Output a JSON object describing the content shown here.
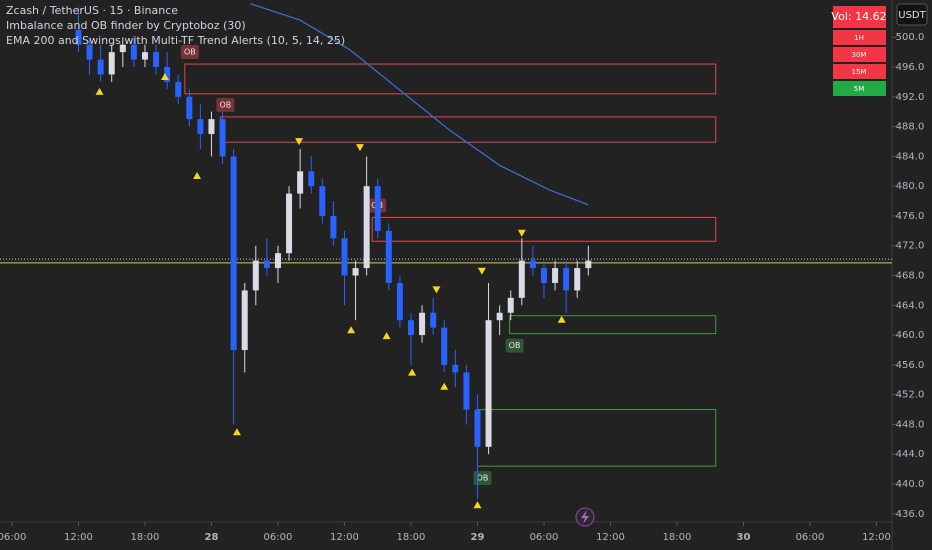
{
  "chart_data": {
    "type": "candlestick",
    "title": "Zcash / TetherUS · 15 · Binance",
    "indicators": [
      "Imbalance and OB finder by Cryptoboz (30)",
      "EMA 200 and Swings with Multi-TF Trend Alerts (10, 5, 14, 25)"
    ],
    "x": [
      12,
      13,
      14,
      15,
      16,
      17,
      18,
      19,
      20,
      21,
      22,
      23,
      24,
      25,
      26,
      27,
      28,
      29,
      30,
      31,
      32,
      33,
      34,
      35,
      36,
      37,
      38,
      39,
      40,
      41,
      42,
      43,
      44,
      45,
      46,
      47,
      48,
      49,
      50,
      51,
      52,
      53,
      54,
      55,
      56,
      57,
      58
    ],
    "open": [
      501,
      499,
      497,
      495,
      498,
      499,
      497,
      498,
      496,
      494,
      492,
      489,
      487,
      489,
      484,
      458,
      466,
      470,
      469,
      471,
      479,
      482,
      480,
      476,
      473,
      468,
      469,
      480,
      474,
      467,
      462,
      460,
      463,
      461,
      456,
      455,
      450,
      445,
      462,
      463,
      465,
      470,
      469,
      467,
      469,
      466,
      469
    ],
    "high": [
      504,
      500,
      499,
      499,
      500,
      500,
      499,
      499,
      498,
      495,
      493,
      491,
      490,
      490,
      485,
      467,
      472,
      473,
      472,
      480,
      485,
      484,
      481,
      478,
      474,
      470,
      484,
      481,
      475,
      468,
      463,
      464,
      465,
      462,
      458,
      456,
      452,
      467,
      464,
      466,
      473,
      472,
      470,
      470,
      470,
      470,
      472
    ],
    "low": [
      498,
      495,
      494,
      494,
      496,
      496,
      496,
      495,
      493,
      491,
      488,
      485,
      484,
      483,
      448,
      455,
      464,
      468,
      467,
      470,
      477,
      479,
      475,
      472,
      464,
      462,
      468,
      473,
      466,
      461,
      456,
      459,
      460,
      455,
      453,
      448,
      438,
      444,
      460,
      462,
      464,
      468,
      465,
      466,
      463,
      465,
      468
    ],
    "close": [
      499,
      497,
      495,
      498,
      499,
      497,
      498,
      496,
      494,
      492,
      489,
      487,
      489,
      484,
      458,
      466,
      470,
      469,
      471,
      479,
      482,
      480,
      476,
      473,
      468,
      469,
      480,
      474,
      467,
      462,
      460,
      463,
      461,
      456,
      455,
      450,
      445,
      462,
      463,
      465,
      470,
      469,
      467,
      469,
      466,
      469,
      470
    ],
    "up_color": "#d9dce4",
    "down_color": "#2962ff",
    "xlim": [
      4.92,
      85.4
    ],
    "xticks": [
      {
        "value": 6,
        "label": "06:00"
      },
      {
        "value": 12,
        "label": "12:00"
      },
      {
        "value": 18,
        "label": "18:00"
      },
      {
        "value": 24,
        "label": "28"
      },
      {
        "value": 30,
        "label": "06:00"
      },
      {
        "value": 36,
        "label": "12:00"
      },
      {
        "value": 42,
        "label": "18:00"
      },
      {
        "value": 48,
        "label": "29"
      },
      {
        "value": 54,
        "label": "06:00"
      },
      {
        "value": 60,
        "label": "12:00"
      },
      {
        "value": 66,
        "label": "18:00"
      },
      {
        "value": 72,
        "label": "30"
      },
      {
        "value": 78,
        "label": "06:00"
      },
      {
        "value": 84,
        "label": "12:00"
      }
    ],
    "ylim": [
      434.9,
      505.0
    ],
    "yticks": [
      {
        "value": 436,
        "label": "436.0"
      },
      {
        "value": 440,
        "label": "440.0"
      },
      {
        "value": 444,
        "label": "444.0"
      },
      {
        "value": 448,
        "label": "448.0"
      },
      {
        "value": 452,
        "label": "452.0"
      },
      {
        "value": 456,
        "label": "456.0"
      },
      {
        "value": 460,
        "label": "460.0"
      },
      {
        "value": 464,
        "label": "464.0"
      },
      {
        "value": 468,
        "label": "468.0"
      },
      {
        "value": 472,
        "label": "472.0"
      },
      {
        "value": 476,
        "label": "476.0"
      },
      {
        "value": 480,
        "label": "480.0"
      },
      {
        "value": 484,
        "label": "484.0"
      },
      {
        "value": 488,
        "label": "488.0"
      },
      {
        "value": 492,
        "label": "492.0"
      },
      {
        "value": 496,
        "label": "496.0"
      },
      {
        "value": 500,
        "label": "500.0"
      }
    ],
    "ema": {
      "color": "#3d6fd8",
      "x": [
        27.5,
        32,
        36.5,
        41,
        45.5,
        50,
        54.5,
        58
      ],
      "values": [
        504.5,
        502.3,
        498.3,
        492.9,
        487.5,
        482.8,
        479.5,
        477.5
      ]
    },
    "zones": [
      {
        "label": "OB",
        "color": "#e0474f",
        "x": [
          21.6,
          69.5
        ],
        "top": 496.4,
        "bottom": 492.4
      },
      {
        "label": "OB",
        "color": "#e0474f",
        "x": [
          24.8,
          69.5
        ],
        "top": 489.3,
        "bottom": 485.9
      },
      {
        "label": "OB",
        "color": "#e0474f",
        "x": [
          38.5,
          69.5
        ],
        "top": 475.8,
        "bottom": 472.6
      },
      {
        "label": "OB",
        "color": "#3f9a48",
        "x": [
          50.9,
          69.5
        ],
        "top": 462.6,
        "bottom": 460.2
      },
      {
        "label": "OB",
        "color": "#3f9a48",
        "x": [
          48.0,
          69.5
        ],
        "top": 450.0,
        "bottom": 442.4
      }
    ],
    "swing_color": "#f5d623",
    "swing_lows": {
      "x": [
        13.9,
        19.8,
        22.7,
        26.3,
        36.6,
        39.8,
        42.1,
        45.0,
        48.0,
        55.6
      ],
      "values": [
        494.0,
        496.0,
        482.7,
        448.3,
        462.0,
        461.2,
        456.3,
        454.4,
        438.5,
        463.4
      ]
    },
    "swing_highs": {
      "x": [
        31.9,
        37.4,
        44.3,
        48.4,
        52.0
      ],
      "values": [
        484.7,
        483.9,
        464.8,
        467.3,
        472.4
      ]
    },
    "price_line": {
      "value": 469.7,
      "color": "#d6d33a"
    },
    "last_price_line": 470.2,
    "currency": "USDT",
    "volume_label": "Vol: 14.62",
    "trend_table": [
      {
        "label": "1H",
        "color": "#f23645"
      },
      {
        "label": "30M",
        "color": "#f23645"
      },
      {
        "label": "15M",
        "color": "#f23645"
      },
      {
        "label": "5M",
        "color": "#22ab45"
      }
    ]
  }
}
